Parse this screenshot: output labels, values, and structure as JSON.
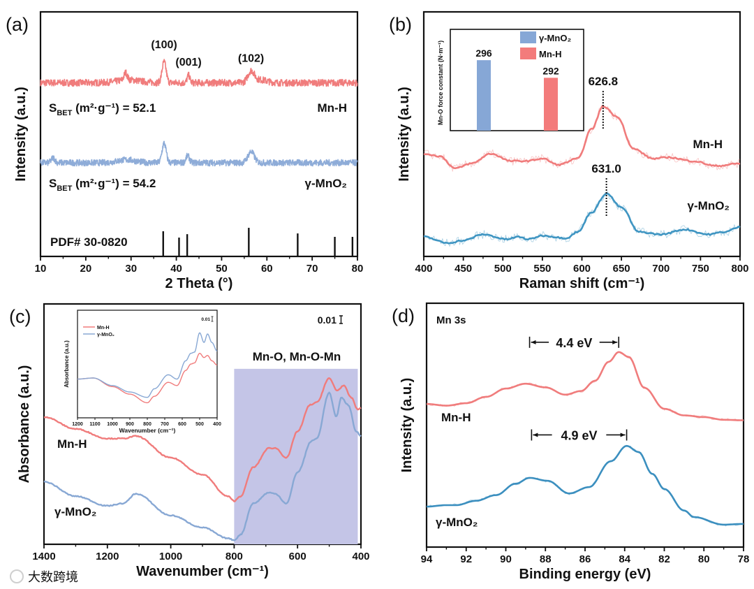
{
  "colors": {
    "red": "#f07c7c",
    "blue_a": "#8eacd8",
    "blue_b": "#3f95c2",
    "blue_c": "#88a8d4",
    "blue_d": "#3b8fbf",
    "shade": "#c4c5e7",
    "bar_blue": "#86a7d6",
    "bar_red": "#f37b7b"
  },
  "watermark": "大数跨境",
  "chart_data": [
    {
      "panel": "(a)",
      "type": "line",
      "xlabel": "2 Theta (°)",
      "ylabel": "Intensity (a.u.)",
      "xlim": [
        10,
        80
      ],
      "ylim": [
        0,
        1
      ],
      "xticks": [
        "10",
        "20",
        "30",
        "40",
        "50",
        "60",
        "70",
        "80"
      ],
      "peak_labels": [
        {
          "text": "(100)",
          "x": 37.3,
          "y": 0.835
        },
        {
          "text": "(001)",
          "x": 42.7,
          "y": 0.775
        },
        {
          "text": "(102)",
          "x": 56.5,
          "y": 0.79
        }
      ],
      "series": [
        {
          "name": "Mn-H",
          "label": "Mn-H",
          "color": "red",
          "baseline": 0.71,
          "noise": 0.014,
          "peaks": [
            [
              28.8,
              0.03,
              0.35
            ],
            [
              29.5,
              0.012,
              2.5
            ],
            [
              37.3,
              0.085,
              0.45
            ],
            [
              42.7,
              0.03,
              0.3
            ],
            [
              56.5,
              0.045,
              0.7
            ],
            [
              58.5,
              0.012,
              1.5
            ]
          ],
          "bet": {
            "s": "S",
            "sub": "BET",
            "rest": " (m²·g⁻¹) = 52.1"
          }
        },
        {
          "name": "γ-MnO₂",
          "label": "γ-MnO₂",
          "color": "blue_a",
          "baseline": 0.383,
          "noise": 0.013,
          "peaks": [
            [
              12.8,
              0.02,
              0.4
            ],
            [
              29,
              0.012,
              2
            ],
            [
              37.3,
              0.08,
              0.45
            ],
            [
              42.5,
              0.028,
              0.4
            ],
            [
              56.5,
              0.045,
              0.7
            ]
          ],
          "bet": {
            "s": "S",
            "sub": "BET",
            "rest": " (m²·g⁻¹) = 54.2"
          }
        }
      ],
      "reference": {
        "label": "PDF# 30-0820",
        "x": [
          37.1,
          40.6,
          42.4,
          56.0,
          66.8,
          75.0,
          78.9
        ],
        "height": [
          0.103,
          0.077,
          0.091,
          0.117,
          0.094,
          0.08,
          0.08
        ]
      }
    },
    {
      "panel": "(b)",
      "type": "line",
      "xlabel": "Raman shift (cm⁻¹)",
      "ylabel": "Intensity (a.u.)",
      "xlim": [
        400,
        800
      ],
      "ylim": [
        0,
        1
      ],
      "xticks": [
        "400",
        "450",
        "500",
        "550",
        "600",
        "650",
        "700",
        "750",
        "800"
      ],
      "series": [
        {
          "name": "Mn-H",
          "label": "Mn-H",
          "color": "red",
          "peak_label": "626.8",
          "peak_x": 626.8,
          "points": [
            [
              400,
              0.42
            ],
            [
              420,
              0.41
            ],
            [
              440,
              0.36
            ],
            [
              460,
              0.38
            ],
            [
              485,
              0.42
            ],
            [
              510,
              0.39
            ],
            [
              530,
              0.39
            ],
            [
              550,
              0.4
            ],
            [
              570,
              0.375
            ],
            [
              595,
              0.4
            ],
            [
              612,
              0.52
            ],
            [
              627,
              0.614
            ],
            [
              645,
              0.57
            ],
            [
              665,
              0.44
            ],
            [
              690,
              0.4
            ],
            [
              710,
              0.405
            ],
            [
              740,
              0.39
            ],
            [
              770,
              0.37
            ],
            [
              800,
              0.38
            ]
          ]
        },
        {
          "name": "γ-MnO₂",
          "label": "γ-MnO₂",
          "color": "blue_b",
          "peak_label": "631.0",
          "peak_x": 631.0,
          "points": [
            [
              400,
              0.08
            ],
            [
              430,
              0.055
            ],
            [
              450,
              0.065
            ],
            [
              475,
              0.09
            ],
            [
              505,
              0.07
            ],
            [
              520,
              0.08
            ],
            [
              532,
              0.07
            ],
            [
              550,
              0.085
            ],
            [
              580,
              0.075
            ],
            [
              595,
              0.1
            ],
            [
              612,
              0.18
            ],
            [
              631,
              0.257
            ],
            [
              650,
              0.2
            ],
            [
              672,
              0.1
            ],
            [
              700,
              0.09
            ],
            [
              730,
              0.11
            ],
            [
              760,
              0.09
            ],
            [
              780,
              0.1
            ],
            [
              800,
              0.12
            ]
          ]
        }
      ],
      "inset": {
        "type": "bar",
        "ylabel": "Mn-O force constant (N·m⁻¹)",
        "ylim": [
          280,
          303
        ],
        "bars": [
          {
            "name": "γ-MnO₂",
            "value": 296,
            "label": "296",
            "color": "bar_blue"
          },
          {
            "name": "Mn-H",
            "value": 292,
            "label": "292",
            "color": "bar_red"
          }
        ],
        "legend": "top-right"
      }
    },
    {
      "panel": "(c)",
      "type": "line",
      "xlabel": "Wavenumber (cm⁻¹)",
      "ylabel": "Absorbance (a.u.)",
      "xlim": [
        1400,
        400
      ],
      "ylim": [
        0,
        1
      ],
      "xticks": [
        "1400",
        "1200",
        "1000",
        "800",
        "600",
        "400"
      ],
      "scale_bar": "0.01",
      "region": {
        "label": "Mn-O, Mn-O-Mn",
        "x": [
          800,
          410
        ],
        "y": [
          0,
          0.73
        ]
      },
      "series": [
        {
          "name": "Mn-H",
          "label": "Mn-H",
          "color": "red",
          "points": [
            [
              1400,
              0.53
            ],
            [
              1300,
              0.48
            ],
            [
              1200,
              0.44
            ],
            [
              1150,
              0.44
            ],
            [
              1110,
              0.45
            ],
            [
              1000,
              0.36
            ],
            [
              900,
              0.29
            ],
            [
              820,
              0.2
            ],
            [
              800,
              0.18
            ],
            [
              780,
              0.2
            ],
            [
              740,
              0.32
            ],
            [
              690,
              0.4
            ],
            [
              670,
              0.4
            ],
            [
              635,
              0.36
            ],
            [
              600,
              0.47
            ],
            [
              560,
              0.58
            ],
            [
              540,
              0.59
            ],
            [
              500,
              0.69
            ],
            [
              475,
              0.64
            ],
            [
              455,
              0.66
            ],
            [
              430,
              0.61
            ],
            [
              410,
              0.56
            ],
            [
              400,
              0.57
            ]
          ]
        },
        {
          "name": "γ-MnO₂",
          "label": "γ-MnO₂",
          "color": "blue_c",
          "points": [
            [
              1400,
              0.26
            ],
            [
              1300,
              0.2
            ],
            [
              1200,
              0.16
            ],
            [
              1150,
              0.17
            ],
            [
              1110,
              0.21
            ],
            [
              1000,
              0.12
            ],
            [
              900,
              0.07
            ],
            [
              820,
              0.025
            ],
            [
              800,
              0.017
            ],
            [
              780,
              0.04
            ],
            [
              740,
              0.17
            ],
            [
              690,
              0.215
            ],
            [
              670,
              0.21
            ],
            [
              635,
              0.17
            ],
            [
              600,
              0.3
            ],
            [
              555,
              0.43
            ],
            [
              540,
              0.44
            ],
            [
              500,
              0.63
            ],
            [
              478,
              0.53
            ],
            [
              462,
              0.61
            ],
            [
              440,
              0.58
            ],
            [
              415,
              0.47
            ],
            [
              400,
              0.45
            ]
          ]
        }
      ],
      "inset": {
        "xlabel": "Wavenumber (cm⁻¹)",
        "ylabel": "Absorbance (a.u.)",
        "xlim": [
          1200,
          400
        ],
        "scale_bar": "0.01",
        "xticks": [
          "1200",
          "1100",
          "1000",
          "900",
          "800",
          "700",
          "600",
          "500",
          "400"
        ],
        "legend": "left",
        "series": [
          {
            "name": "Mn-H",
            "color": "red",
            "points": [
              [
                1200,
                0.36
              ],
              [
                1110,
                0.37
              ],
              [
                1000,
                0.29
              ],
              [
                900,
                0.22
              ],
              [
                800,
                0.14
              ],
              [
                760,
                0.2
              ],
              [
                680,
                0.33
              ],
              [
                630,
                0.3
              ],
              [
                580,
                0.44
              ],
              [
                550,
                0.5
              ],
              [
                530,
                0.51
              ],
              [
                500,
                0.6
              ],
              [
                475,
                0.56
              ],
              [
                455,
                0.58
              ],
              [
                430,
                0.53
              ],
              [
                400,
                0.49
              ]
            ]
          },
          {
            "name": "γ-MnO₂",
            "color": "blue_c",
            "points": [
              [
                1200,
                0.36
              ],
              [
                1110,
                0.37
              ],
              [
                1000,
                0.3
              ],
              [
                900,
                0.24
              ],
              [
                800,
                0.19
              ],
              [
                760,
                0.27
              ],
              [
                680,
                0.4
              ],
              [
                630,
                0.36
              ],
              [
                580,
                0.53
              ],
              [
                550,
                0.6
              ],
              [
                530,
                0.61
              ],
              [
                500,
                0.79
              ],
              [
                475,
                0.7
              ],
              [
                455,
                0.78
              ],
              [
                430,
                0.7
              ],
              [
                400,
                0.62
              ]
            ]
          }
        ]
      }
    },
    {
      "panel": "(d)",
      "type": "line",
      "xlabel": "Binding energy (eV)",
      "ylabel": "Intensity (a.u.)",
      "xlim": [
        94,
        78
      ],
      "ylim": [
        0,
        1
      ],
      "xticks": [
        "94",
        "92",
        "90",
        "88",
        "86",
        "84",
        "82",
        "80",
        "78"
      ],
      "title": "Mn 3s",
      "series": [
        {
          "name": "Mn-H",
          "label": "Mn-H",
          "color": "red",
          "split": {
            "label": "4.4 eV",
            "from": 88.8,
            "to": 84.3,
            "y": 0.84
          },
          "points": [
            [
              94,
              0.587
            ],
            [
              93,
              0.58
            ],
            [
              92,
              0.59
            ],
            [
              91,
              0.616
            ],
            [
              90,
              0.65
            ],
            [
              89,
              0.67
            ],
            [
              88,
              0.655
            ],
            [
              87,
              0.625
            ],
            [
              86.2,
              0.64
            ],
            [
              85.5,
              0.682
            ],
            [
              84.8,
              0.76
            ],
            [
              84.3,
              0.8
            ],
            [
              83.8,
              0.78
            ],
            [
              83,
              0.653
            ],
            [
              82,
              0.567
            ],
            [
              81,
              0.54
            ],
            [
              80,
              0.533
            ],
            [
              79,
              0.522
            ],
            [
              78,
              0.52
            ]
          ]
        },
        {
          "name": "γ-MnO₂",
          "label": "γ-MnO₂",
          "color": "blue_d",
          "split": {
            "label": "4.9 eV",
            "from": 88.7,
            "to": 83.9,
            "y": 0.46
          },
          "points": [
            [
              94,
              0.166
            ],
            [
              93,
              0.172
            ],
            [
              92.5,
              0.172
            ],
            [
              91.5,
              0.19
            ],
            [
              90.5,
              0.213
            ],
            [
              89.5,
              0.26
            ],
            [
              88.8,
              0.284
            ],
            [
              87.9,
              0.272
            ],
            [
              86.8,
              0.22
            ],
            [
              85.8,
              0.246
            ],
            [
              84.7,
              0.352
            ],
            [
              83.9,
              0.415
            ],
            [
              83.3,
              0.39
            ],
            [
              82.6,
              0.3
            ],
            [
              82,
              0.238
            ],
            [
              81,
              0.15
            ],
            [
              80.5,
              0.123
            ],
            [
              79,
              0.092
            ],
            [
              78,
              0.095
            ]
          ]
        }
      ]
    }
  ]
}
